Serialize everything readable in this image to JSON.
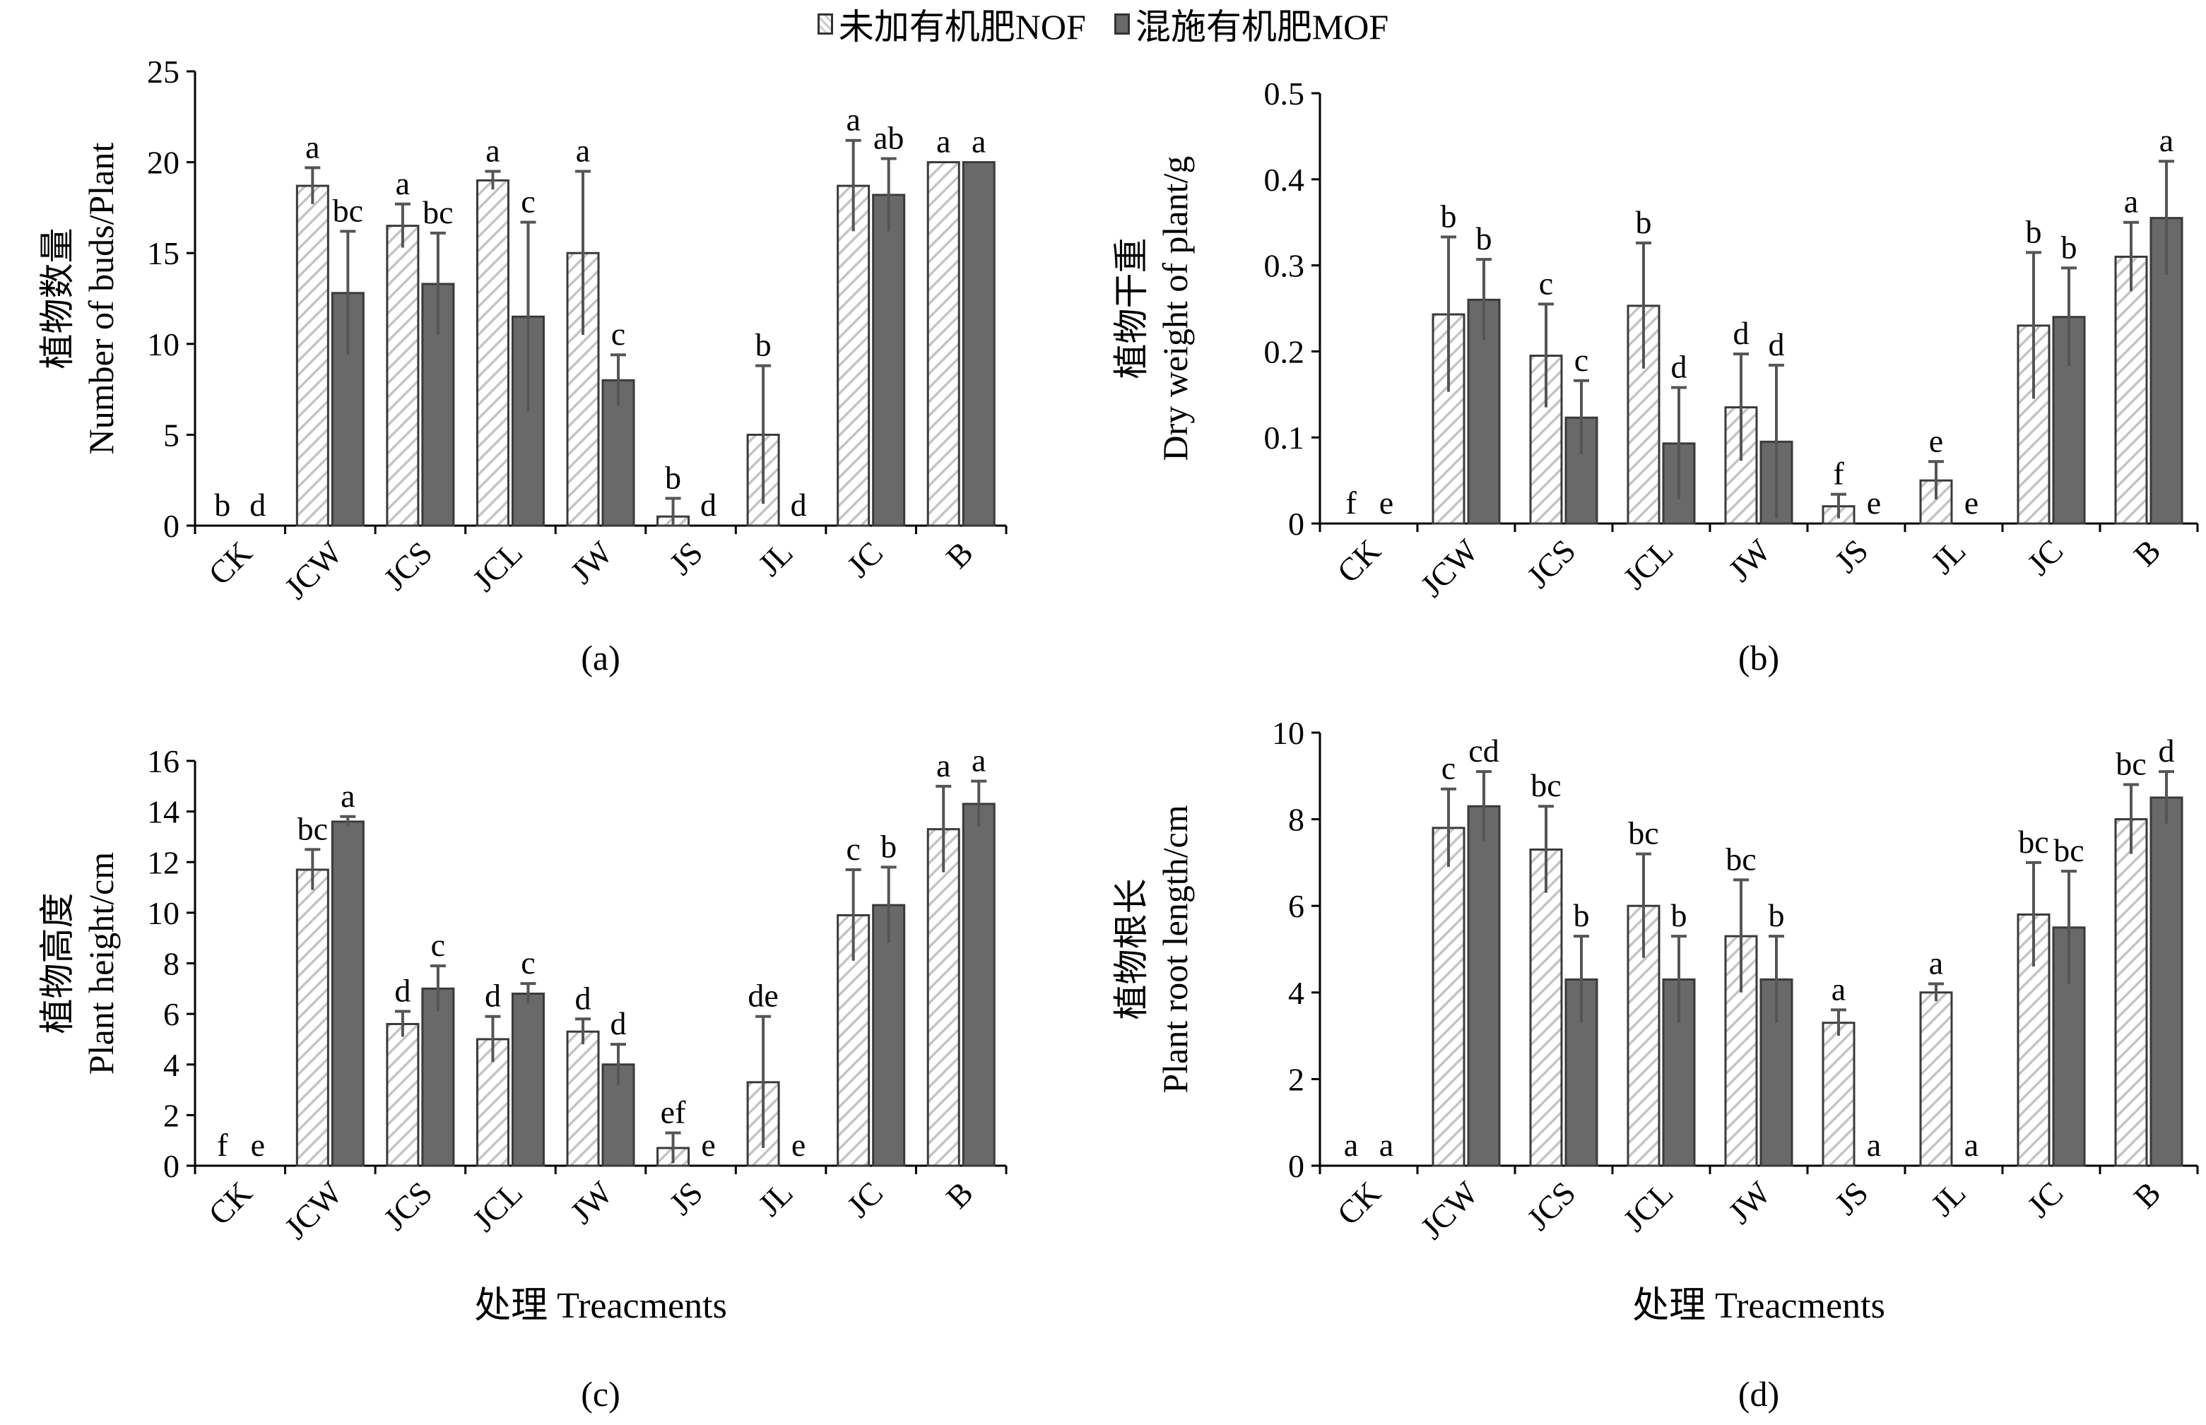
{
  "legend": {
    "nof": {
      "label": "未加有机肥NOF",
      "color": "#ffffff"
    },
    "mof": {
      "label": "混施有机肥MOF",
      "color": "#696969"
    }
  },
  "x_title": "处理 Treacments",
  "chart_data": [
    {
      "type": "bar",
      "panel": "(a)",
      "ylabel_cn": "植物数量",
      "ylabel_en": "Number of buds/Plant",
      "xlabel": "",
      "ylim": [
        0,
        25
      ],
      "yticks": [
        0,
        5,
        10,
        15,
        20,
        25
      ],
      "categories": [
        "CK",
        "JCW",
        "JCS",
        "JCL",
        "JW",
        "JS",
        "JL",
        "JC",
        "B"
      ],
      "series": [
        {
          "name": "未加有机肥NOF",
          "values": [
            0,
            18.7,
            16.5,
            19,
            15,
            0.5,
            5,
            18.7,
            20
          ],
          "errors": [
            0,
            1,
            1.2,
            0.5,
            4.5,
            1,
            3.8,
            2.5,
            0
          ],
          "letters": [
            "b",
            "a",
            "a",
            "a",
            "a",
            "b",
            "b",
            "a",
            "a"
          ]
        },
        {
          "name": "混施有机肥MOF",
          "values": [
            0,
            12.8,
            13.3,
            11.5,
            8,
            0,
            0,
            18.2,
            20
          ],
          "errors": [
            0,
            3.4,
            2.8,
            5.2,
            1.4,
            0,
            0,
            2,
            0
          ],
          "letters": [
            "d",
            "bc",
            "bc",
            "c",
            "c",
            "d",
            "d",
            "ab",
            "a"
          ]
        }
      ],
      "grid": false
    },
    {
      "type": "bar",
      "panel": "(b)",
      "ylabel_cn": "植物干重",
      "ylabel_en": "Dry weight of plant/g",
      "xlabel": "",
      "ylim": [
        0,
        0.5
      ],
      "yticks": [
        0,
        0.1,
        0.2,
        0.3,
        0.4,
        0.5
      ],
      "categories": [
        "CK",
        "JCW",
        "JCS",
        "JCL",
        "JW",
        "JS",
        "JL",
        "JC",
        "B"
      ],
      "series": [
        {
          "name": "未加有机肥NOF",
          "values": [
            0,
            0.243,
            0.195,
            0.253,
            0.135,
            0.02,
            0.05,
            0.23,
            0.31
          ],
          "errors": [
            0,
            0.09,
            0.06,
            0.073,
            0.062,
            0.014,
            0.022,
            0.085,
            0.04
          ],
          "letters": [
            "f",
            "b",
            "c",
            "b",
            "d",
            "f",
            "e",
            "b",
            "a"
          ]
        },
        {
          "name": "混施有机肥MOF",
          "values": [
            0,
            0.26,
            0.123,
            0.093,
            0.095,
            0,
            0,
            0.24,
            0.355
          ],
          "errors": [
            0,
            0.047,
            0.043,
            0.065,
            0.089,
            0,
            0,
            0.057,
            0.066
          ],
          "letters": [
            "e",
            "b",
            "c",
            "d",
            "d",
            "e",
            "e",
            "b",
            "a"
          ]
        }
      ],
      "grid": false
    },
    {
      "type": "bar",
      "panel": "(c)",
      "ylabel_cn": "植物高度",
      "ylabel_en": "Plant height/cm",
      "xlabel": "处理 Treacments",
      "ylim": [
        0,
        16
      ],
      "yticks": [
        0,
        2,
        4,
        6,
        8,
        10,
        12,
        14,
        16
      ],
      "categories": [
        "CK",
        "JCW",
        "JCS",
        "JCL",
        "JW",
        "JS",
        "JL",
        "JC",
        "B"
      ],
      "series": [
        {
          "name": "未加有机肥NOF",
          "values": [
            0,
            11.7,
            5.6,
            5,
            5.3,
            0.7,
            3.3,
            9.9,
            13.3
          ],
          "errors": [
            0,
            0.8,
            0.5,
            0.9,
            0.5,
            0.6,
            2.6,
            1.8,
            1.7
          ],
          "letters": [
            "f",
            "bc",
            "d",
            "d",
            "d",
            "ef",
            "de",
            "c",
            "a"
          ]
        },
        {
          "name": "混施有机肥MOF",
          "values": [
            0,
            13.6,
            7,
            6.8,
            4,
            0,
            0,
            10.3,
            14.3
          ],
          "errors": [
            0,
            0.2,
            0.9,
            0.4,
            0.8,
            0,
            0,
            1.5,
            0.9
          ],
          "letters": [
            "e",
            "a",
            "c",
            "c",
            "d",
            "e",
            "e",
            "b",
            "a"
          ]
        }
      ],
      "grid": false
    },
    {
      "type": "bar",
      "panel": "(d)",
      "ylabel_cn": "植物根长",
      "ylabel_en": "Plant root length/cm",
      "xlabel": "处理 Treacments",
      "ylim": [
        0,
        10
      ],
      "yticks": [
        0,
        2,
        4,
        6,
        8,
        10
      ],
      "categories": [
        "CK",
        "JCW",
        "JCS",
        "JCL",
        "JW",
        "JS",
        "JL",
        "JC",
        "B"
      ],
      "series": [
        {
          "name": "未加有机肥NOF",
          "values": [
            0,
            7.8,
            7.3,
            6,
            5.3,
            3.3,
            4,
            5.8,
            8
          ],
          "errors": [
            0,
            0.9,
            1,
            1.2,
            1.3,
            0.3,
            0.2,
            1.2,
            0.8
          ],
          "letters": [
            "a",
            "c",
            "bc",
            "bc",
            "bc",
            "a",
            "a",
            "bc",
            "bc"
          ]
        },
        {
          "name": "混施有机肥MOF",
          "values": [
            0,
            8.3,
            4.3,
            4.3,
            4.3,
            0,
            0,
            5.5,
            8.5
          ],
          "errors": [
            0,
            0.8,
            1,
            1,
            1,
            0,
            0,
            1.3,
            0.6
          ],
          "letters": [
            "a",
            "cd",
            "b",
            "b",
            "b",
            "a",
            "a",
            "bc",
            "d"
          ]
        }
      ],
      "grid": false
    }
  ]
}
